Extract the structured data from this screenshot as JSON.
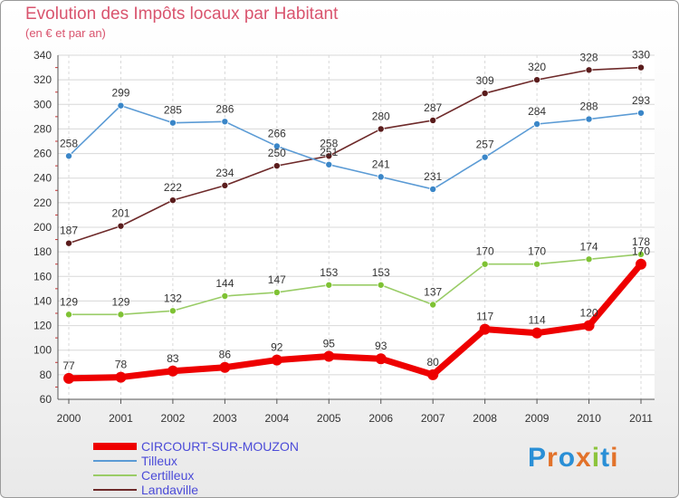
{
  "header": {
    "title": "Evolution des Impôts locaux par Habitant",
    "subtitle": "(en € et par an)"
  },
  "logo": {
    "text": "Proxiti",
    "letters": [
      "P",
      "r",
      "o",
      "x",
      "i",
      "t",
      "i"
    ],
    "colors": [
      "#2a8fd6",
      "#e2722a",
      "#2a8fd6",
      "#e2722a",
      "#8cc43c",
      "#2a8fd6",
      "#e2722a"
    ]
  },
  "chart_data": {
    "type": "line",
    "x": [
      "2000",
      "2001",
      "2002",
      "2003",
      "2004",
      "2005",
      "2006",
      "2007",
      "2008",
      "2009",
      "2010",
      "2011"
    ],
    "ylim": [
      60,
      340
    ],
    "yticks": [
      "60",
      "80",
      "100",
      "120",
      "140",
      "160",
      "180",
      "200",
      "220",
      "240",
      "260",
      "280",
      "300",
      "320",
      "340"
    ],
    "grid": "horizontal",
    "legend_position": "bottom-left",
    "series": [
      {
        "name": "CIRCOURT-SUR-MOUZON",
        "color": "#ee0000",
        "values": [
          77,
          78,
          83,
          86,
          92,
          95,
          93,
          80,
          117,
          114,
          120,
          170
        ]
      },
      {
        "name": "Tilleux",
        "color": "#5b9bd5",
        "values": [
          258,
          299,
          285,
          286,
          266,
          251,
          241,
          231,
          257,
          284,
          288,
          293
        ]
      },
      {
        "name": "Certilleux",
        "color": "#99cc66",
        "values": [
          129,
          129,
          132,
          144,
          147,
          153,
          153,
          137,
          170,
          170,
          174,
          178
        ]
      },
      {
        "name": "Landaville",
        "color": "#6e2a2a",
        "values": [
          187,
          201,
          222,
          234,
          250,
          258,
          280,
          287,
          309,
          320,
          328,
          330
        ]
      }
    ]
  }
}
